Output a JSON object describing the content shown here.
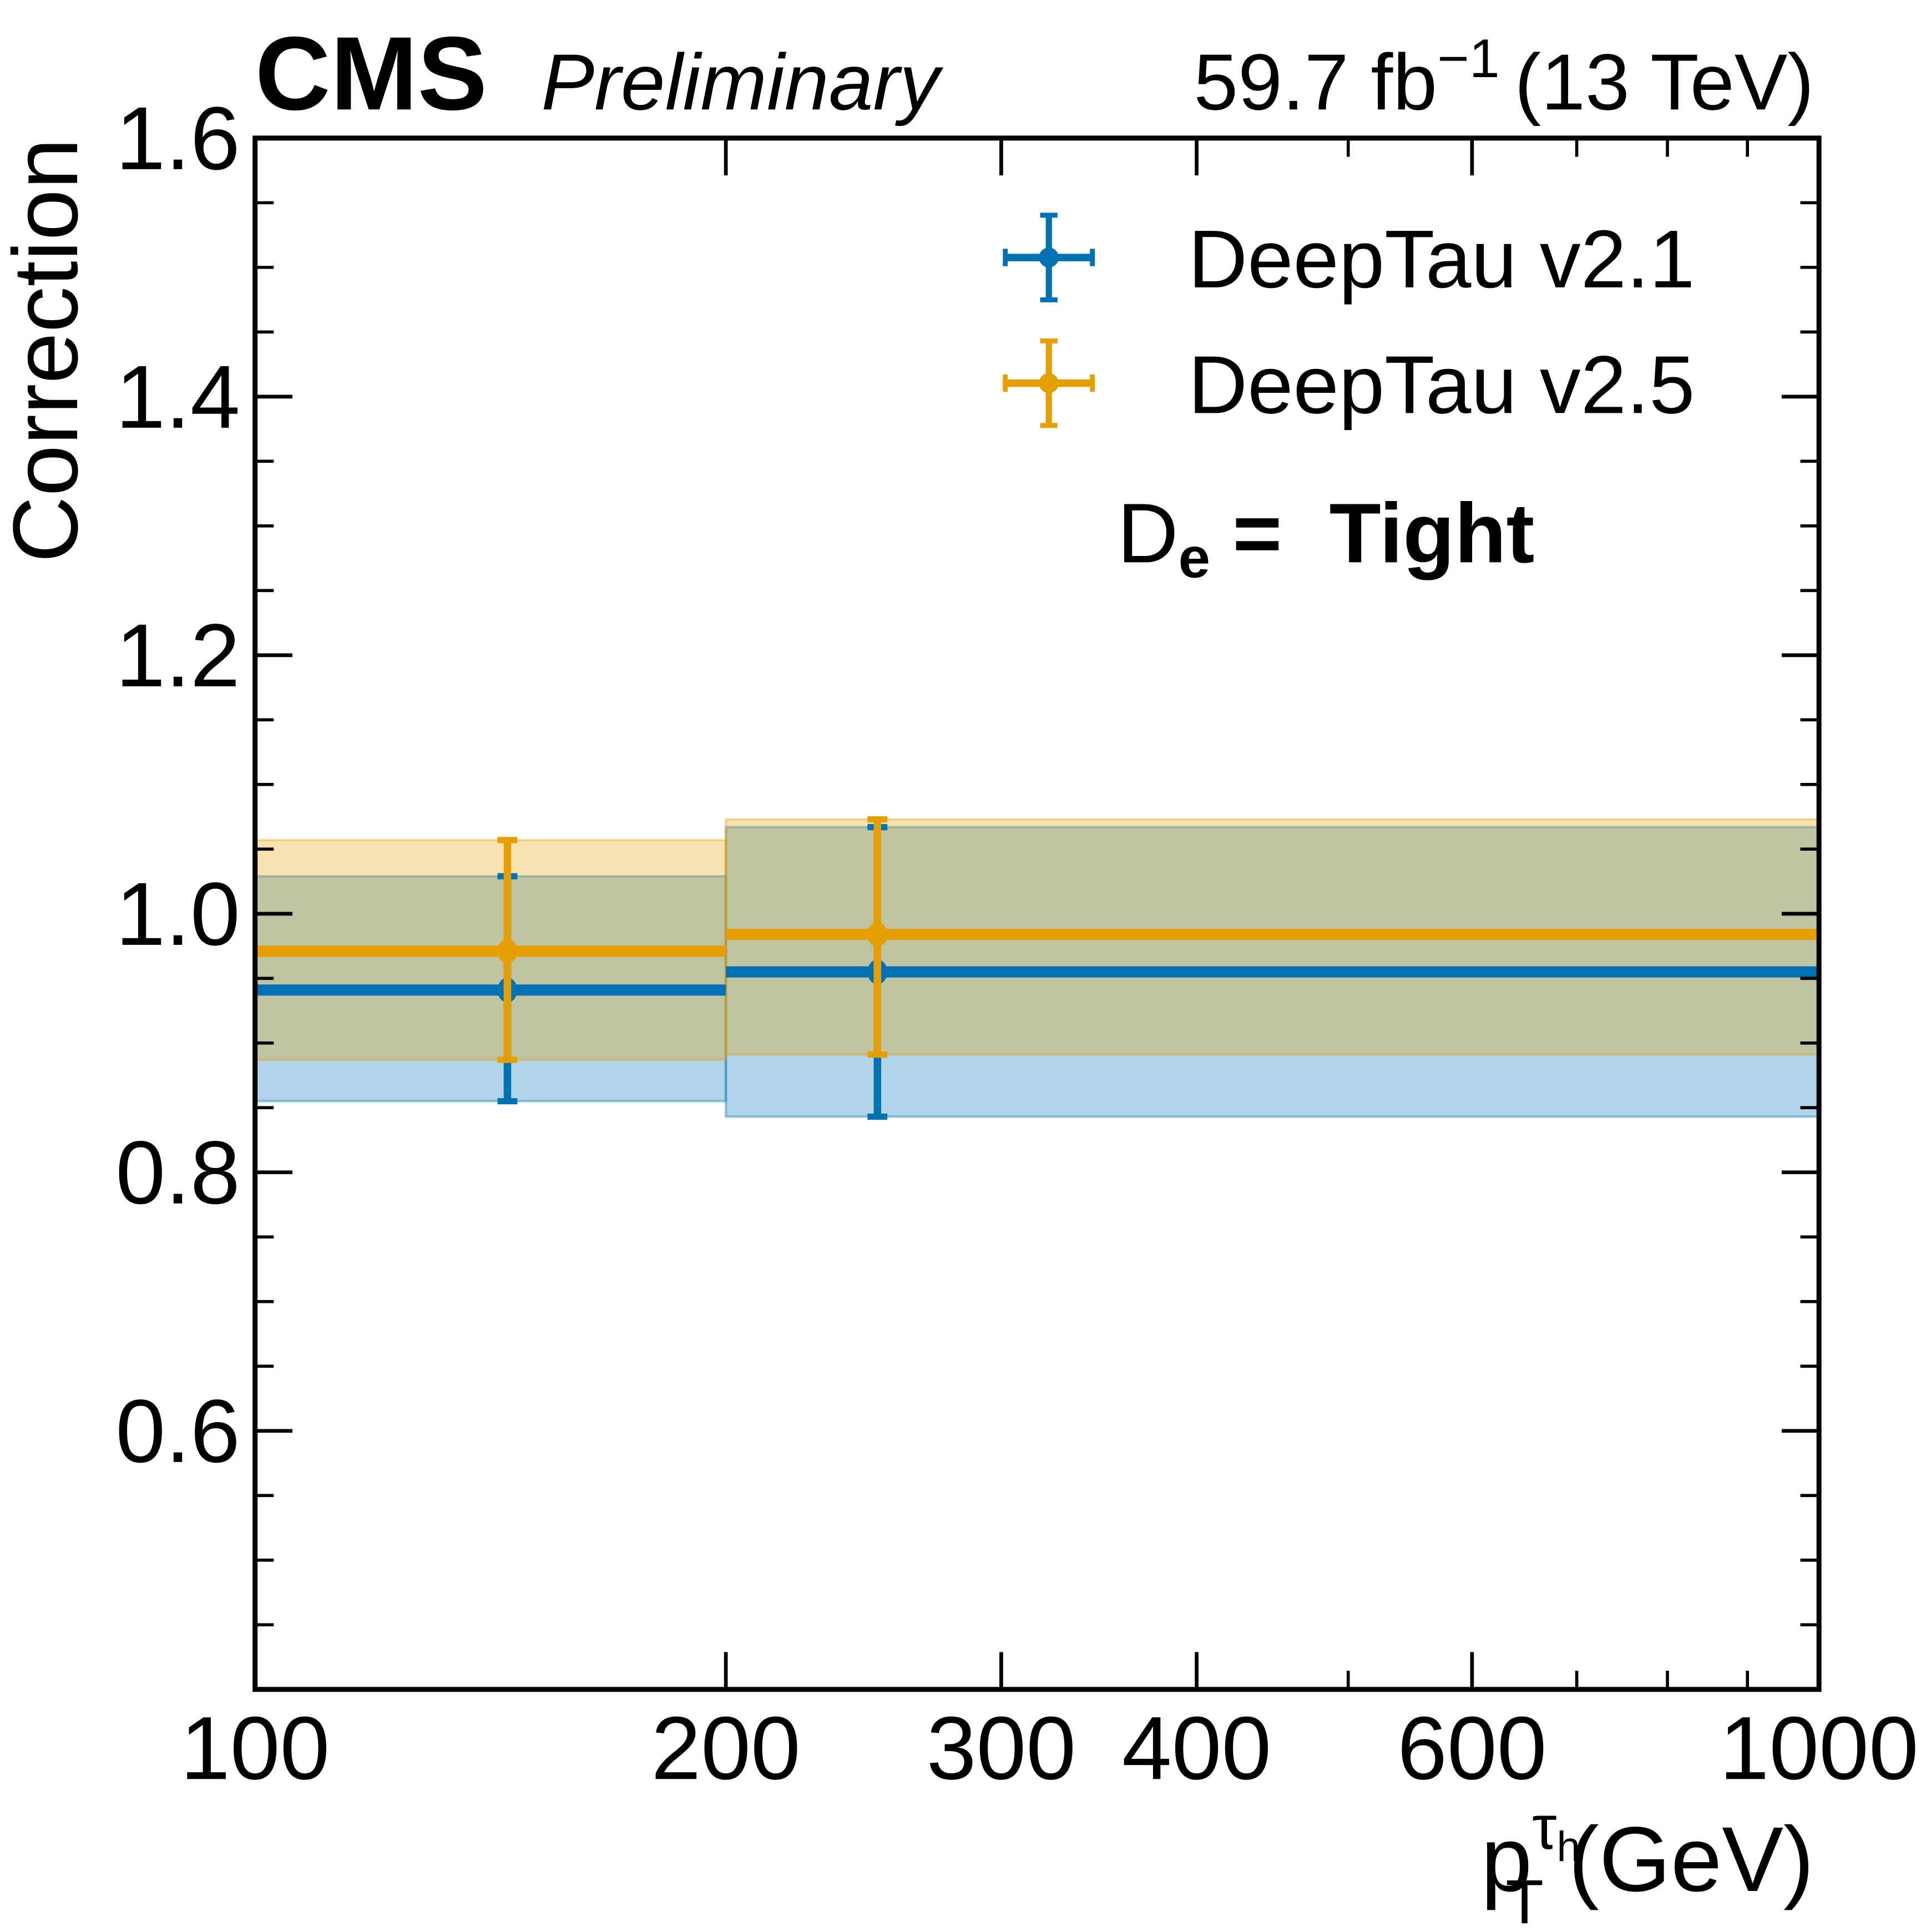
{
  "chart_data": {
    "type": "errorbar",
    "experiment": "CMS",
    "status": "Preliminary",
    "lumi_label": "59.7 fb",
    "lumi_exp": "−1",
    "energy_label": "(13 TeV)",
    "ylabel": "Correction",
    "xlabel_main": "p",
    "xlabel_sub": "T",
    "xlabel_sup": "τ",
    "xlabel_supsub": "h",
    "xlabel_unit": "(GeV)",
    "xscale": "log",
    "xlim": [
      100,
      1000
    ],
    "ylim": [
      0.4,
      1.6
    ],
    "xticks_major": [
      100,
      200,
      300,
      400,
      600,
      1000
    ],
    "xtick_labels": [
      "100",
      "200",
      "300",
      "400",
      "600",
      "1000"
    ],
    "xticks_minor": [
      500,
      700,
      800,
      900
    ],
    "yticks_major": [
      0.6,
      0.8,
      1.0,
      1.2,
      1.4,
      1.6
    ],
    "ytick_labels": [
      "0.6",
      "0.8",
      "1.0",
      "1.2",
      "1.4",
      "1.6"
    ],
    "ytick_minor_step": 0.05,
    "bins": [
      [
        100,
        200
      ],
      [
        200,
        1000
      ]
    ],
    "x_points": [
      145,
      250
    ],
    "series": [
      {
        "name": "DeepTau v2.1",
        "color": "#0072b2",
        "values": [
          0.941,
          0.955
        ],
        "band_low": [
          0.855,
          0.843
        ],
        "band_high": [
          1.029,
          1.067
        ]
      },
      {
        "name": "DeepTau v2.5",
        "color": "#e69f00",
        "values": [
          0.971,
          0.984
        ],
        "band_low": [
          0.887,
          0.891
        ],
        "band_high": [
          1.057,
          1.073
        ]
      }
    ],
    "legend_placement": "top-right",
    "annotation_label": "D",
    "annotation_sub": "e",
    "annotation_eq": "=",
    "annotation_value": "Tight"
  }
}
